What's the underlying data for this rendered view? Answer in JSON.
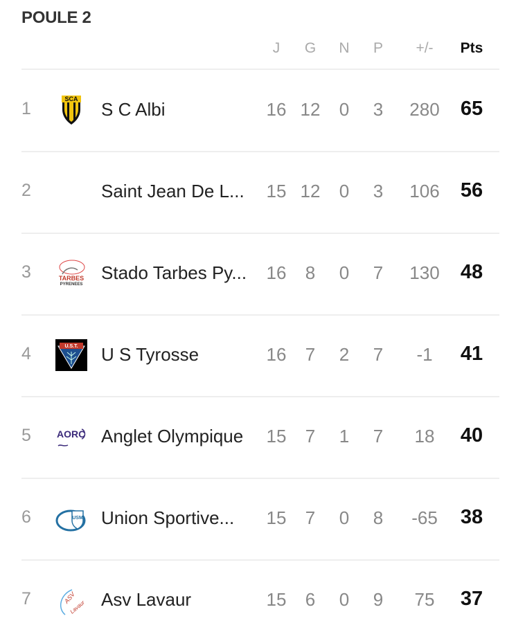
{
  "title": "POULE 2",
  "columns": {
    "j": "J",
    "g": "G",
    "n": "N",
    "p": "P",
    "diff": "+/-",
    "pts": "Pts"
  },
  "rows": [
    {
      "rank": "1",
      "name": "S C Albi",
      "logo": "sc-albi-logo",
      "logo_text": "SCA",
      "j": "16",
      "g": "12",
      "n": "0",
      "p": "3",
      "diff": "280",
      "pts": "65"
    },
    {
      "rank": "2",
      "name": "Saint Jean De L...",
      "logo": "none",
      "j": "15",
      "g": "12",
      "n": "0",
      "p": "3",
      "diff": "106",
      "pts": "56"
    },
    {
      "rank": "3",
      "name": "Stado Tarbes Py...",
      "logo": "tarbes-logo",
      "logo_text": "TARBES PYRENEES",
      "j": "16",
      "g": "8",
      "n": "0",
      "p": "7",
      "diff": "130",
      "pts": "48"
    },
    {
      "rank": "4",
      "name": "U S Tyrosse",
      "logo": "ust-logo",
      "logo_text": "U.S.T.",
      "j": "16",
      "g": "7",
      "n": "2",
      "p": "7",
      "diff": "-1",
      "pts": "41"
    },
    {
      "rank": "5",
      "name": "Anglet Olympique",
      "logo": "aorc-logo",
      "logo_text": "AORC",
      "j": "15",
      "g": "7",
      "n": "1",
      "p": "7",
      "diff": "18",
      "pts": "40"
    },
    {
      "rank": "6",
      "name": "Union Sportive...",
      "logo": "usm-logo",
      "logo_text": "USM",
      "j": "15",
      "g": "7",
      "n": "0",
      "p": "8",
      "diff": "-65",
      "pts": "38"
    },
    {
      "rank": "7",
      "name": "Asv Lavaur",
      "logo": "asv-lavaur-logo",
      "logo_text": "ASV Lavaur",
      "j": "15",
      "g": "6",
      "n": "0",
      "p": "9",
      "diff": "75",
      "pts": "37"
    }
  ]
}
